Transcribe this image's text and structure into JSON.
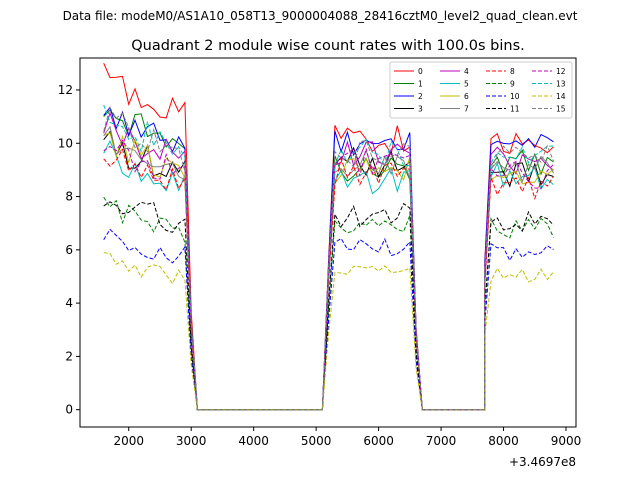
{
  "chart_data": {
    "type": "line",
    "suptitle": "Data file: modeM0/AS1A10_058T13_9000004088_28416cztM0_level2_quad_clean.evt",
    "title": "Quadrant 2 module wise count rates with 100.0s bins.",
    "xlabel": "",
    "ylabel": "",
    "x_offset_label": "+3.4697e8",
    "xlim": [
      1220,
      9160
    ],
    "ylim": [
      -0.65,
      13.2
    ],
    "xticks": [
      2000,
      3000,
      4000,
      5000,
      6000,
      7000,
      8000,
      9000
    ],
    "yticks": [
      0,
      2,
      4,
      6,
      8,
      10,
      12
    ],
    "grid": false,
    "legend": {
      "location": "upper right",
      "columns": 4
    },
    "segments": [
      {
        "start": 1600,
        "end": 2900
      },
      {
        "start": 5300,
        "end": 6500
      },
      {
        "start": 7800,
        "end": 8800
      }
    ],
    "gap_ranges": [
      [
        3100,
        5100
      ],
      [
        6700,
        7700
      ]
    ],
    "series": [
      {
        "name": "0",
        "color": "#ff0000",
        "dash": false,
        "levels": [
          12.3,
          10.2,
          10.1
        ]
      },
      {
        "name": "1",
        "color": "#008000",
        "dash": false,
        "levels": [
          11.2,
          9.1,
          9.2
        ]
      },
      {
        "name": "2",
        "color": "#0000ff",
        "dash": false,
        "levels": [
          11.0,
          10.0,
          10.0
        ]
      },
      {
        "name": "3",
        "color": "#000000",
        "dash": false,
        "levels": [
          10.0,
          9.3,
          8.8
        ]
      },
      {
        "name": "4",
        "color": "#bf00bf",
        "dash": false,
        "levels": [
          10.6,
          9.7,
          9.4
        ]
      },
      {
        "name": "5",
        "color": "#00bfbf",
        "dash": false,
        "levels": [
          9.6,
          8.6,
          8.8
        ]
      },
      {
        "name": "6",
        "color": "#bfbf00",
        "dash": false,
        "levels": [
          10.1,
          9.0,
          8.9
        ]
      },
      {
        "name": "7",
        "color": "#808080",
        "dash": false,
        "levels": [
          10.3,
          9.2,
          9.0
        ]
      },
      {
        "name": "8",
        "color": "#ff0000",
        "dash": true,
        "levels": [
          9.6,
          8.9,
          8.4
        ]
      },
      {
        "name": "9",
        "color": "#008000",
        "dash": true,
        "levels": [
          7.6,
          6.9,
          6.8
        ]
      },
      {
        "name": "10",
        "color": "#0000ff",
        "dash": true,
        "levels": [
          6.5,
          6.1,
          5.9
        ]
      },
      {
        "name": "11",
        "color": "#000000",
        "dash": true,
        "levels": [
          7.9,
          7.3,
          7.0
        ]
      },
      {
        "name": "12",
        "color": "#bf00bf",
        "dash": true,
        "levels": [
          9.9,
          9.3,
          8.8
        ]
      },
      {
        "name": "13",
        "color": "#00bfbf",
        "dash": true,
        "levels": [
          10.9,
          9.6,
          9.4
        ]
      },
      {
        "name": "14",
        "color": "#bfbf00",
        "dash": true,
        "levels": [
          5.6,
          5.2,
          5.1
        ]
      },
      {
        "name": "15",
        "color": "#808080",
        "dash": true,
        "levels": [
          10.8,
          9.6,
          9.5
        ]
      }
    ]
  }
}
